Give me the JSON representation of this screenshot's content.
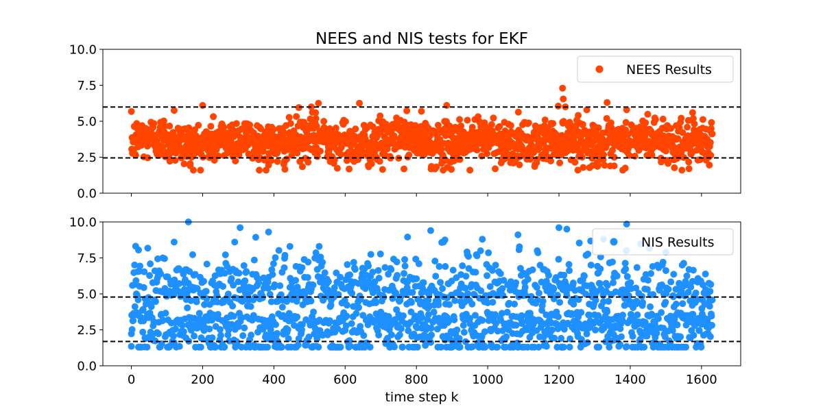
{
  "chart_data": {
    "type": "scatter",
    "title": "NEES and NIS tests for EKF",
    "shared_x": {
      "xlabel": "time step k",
      "xlim": [
        -80,
        1710
      ],
      "ticks": [
        0,
        200,
        400,
        600,
        800,
        1000,
        1200,
        1400,
        1600
      ],
      "tick_labels": [
        "0",
        "200",
        "400",
        "600",
        "800",
        "1000",
        "1200",
        "1400",
        "1600"
      ]
    },
    "panels": [
      {
        "name": "nees",
        "series_name": "NEES Results",
        "color": "#ff4500",
        "ylim": [
          0,
          10
        ],
        "yticks": [
          0,
          2.5,
          5,
          7.5,
          10
        ],
        "ytick_labels": [
          "0.0",
          "2.5",
          "5.0",
          "7.5",
          "10.0"
        ],
        "bounds": [
          2.45,
          5.99
        ],
        "legend_position": "upper right",
        "x_range": [
          0,
          1630
        ],
        "distribution": {
          "mean": 3.6,
          "sd": 0.75,
          "min": 1.6,
          "max": 7.3
        },
        "outliers": [
          {
            "x": 1210,
            "y": 7.3
          },
          {
            "x": 1212,
            "y": 6.55
          },
          {
            "x": 1335,
            "y": 6.3
          },
          {
            "x": 1218,
            "y": 6.0
          },
          {
            "x": 885,
            "y": 6.1
          },
          {
            "x": 200,
            "y": 6.1
          },
          {
            "x": 525,
            "y": 6.25
          },
          {
            "x": 505,
            "y": 6.0
          },
          {
            "x": 640,
            "y": 6.25
          },
          {
            "x": 1390,
            "y": 5.8
          },
          {
            "x": 120,
            "y": 5.75
          },
          {
            "x": 1575,
            "y": 5.6
          },
          {
            "x": 470,
            "y": 5.95
          },
          {
            "x": 705,
            "y": 1.65
          },
          {
            "x": 950,
            "y": 1.6
          },
          {
            "x": 1355,
            "y": 1.9
          },
          {
            "x": 385,
            "y": 1.95
          },
          {
            "x": 165,
            "y": 1.9
          },
          {
            "x": 1590,
            "y": 2.3
          }
        ]
      },
      {
        "name": "nis",
        "series_name": "NIS Results",
        "color": "#1e90ff",
        "ylim": [
          0,
          10
        ],
        "yticks": [
          0,
          2.5,
          5,
          7.5,
          10
        ],
        "ytick_labels": [
          "0.0",
          "2.5",
          "5.0",
          "7.5",
          "10.0"
        ],
        "bounds": [
          1.69,
          4.78
        ],
        "legend_position": "upper right",
        "x_range": [
          0,
          1630
        ],
        "distribution": {
          "mean": 3.8,
          "sd": 1.55,
          "min": 1.3,
          "max": 10.0
        },
        "outliers": [
          {
            "x": 160,
            "y": 10.0
          },
          {
            "x": 1390,
            "y": 9.85
          },
          {
            "x": 1222,
            "y": 9.5
          },
          {
            "x": 840,
            "y": 9.4
          },
          {
            "x": 385,
            "y": 9.3
          },
          {
            "x": 775,
            "y": 8.95
          },
          {
            "x": 1325,
            "y": 8.8
          },
          {
            "x": 985,
            "y": 8.8
          },
          {
            "x": 880,
            "y": 8.75
          },
          {
            "x": 120,
            "y": 8.6
          },
          {
            "x": 290,
            "y": 8.6
          },
          {
            "x": 445,
            "y": 8.3
          },
          {
            "x": 1500,
            "y": 7.9
          },
          {
            "x": 20,
            "y": 8.05
          },
          {
            "x": 0,
            "y": 1.35
          },
          {
            "x": 370,
            "y": 1.3
          },
          {
            "x": 510,
            "y": 1.35
          },
          {
            "x": 1165,
            "y": 1.35
          },
          {
            "x": 135,
            "y": 1.35
          },
          {
            "x": 610,
            "y": 1.4
          }
        ]
      }
    ]
  }
}
